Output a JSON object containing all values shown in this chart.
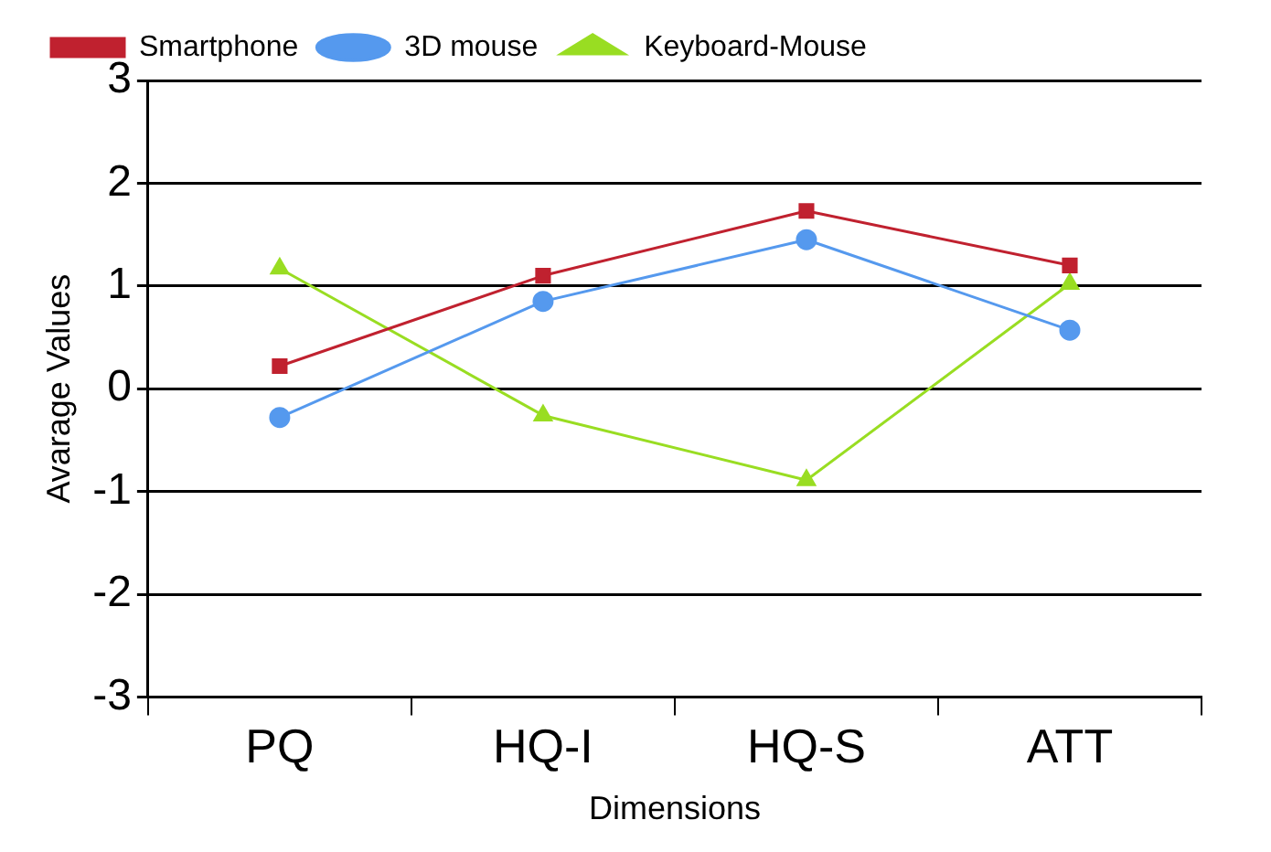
{
  "chart_data": {
    "type": "line",
    "xlabel": "Dimensions",
    "ylabel": "Avarage Values",
    "categories": [
      "PQ",
      "HQ-I",
      "HQ-S",
      "ATT"
    ],
    "series": [
      {
        "name": "Smartphone",
        "color": "#c0212f",
        "marker": "square",
        "values": [
          0.22,
          1.1,
          1.73,
          1.2
        ]
      },
      {
        "name": "3D mouse",
        "color": "#5599ee",
        "marker": "circle",
        "values": [
          -0.28,
          0.85,
          1.45,
          0.57
        ]
      },
      {
        "name": "Keyboard-Mouse",
        "color": "#99dd22",
        "marker": "triangle",
        "values": [
          1.17,
          -0.26,
          -0.89,
          1.02
        ]
      }
    ],
    "ylim": [
      -3,
      3
    ],
    "yticks": [
      -3,
      -2,
      -1,
      0,
      1,
      2,
      3
    ],
    "grid": "y",
    "legend": "top left"
  }
}
